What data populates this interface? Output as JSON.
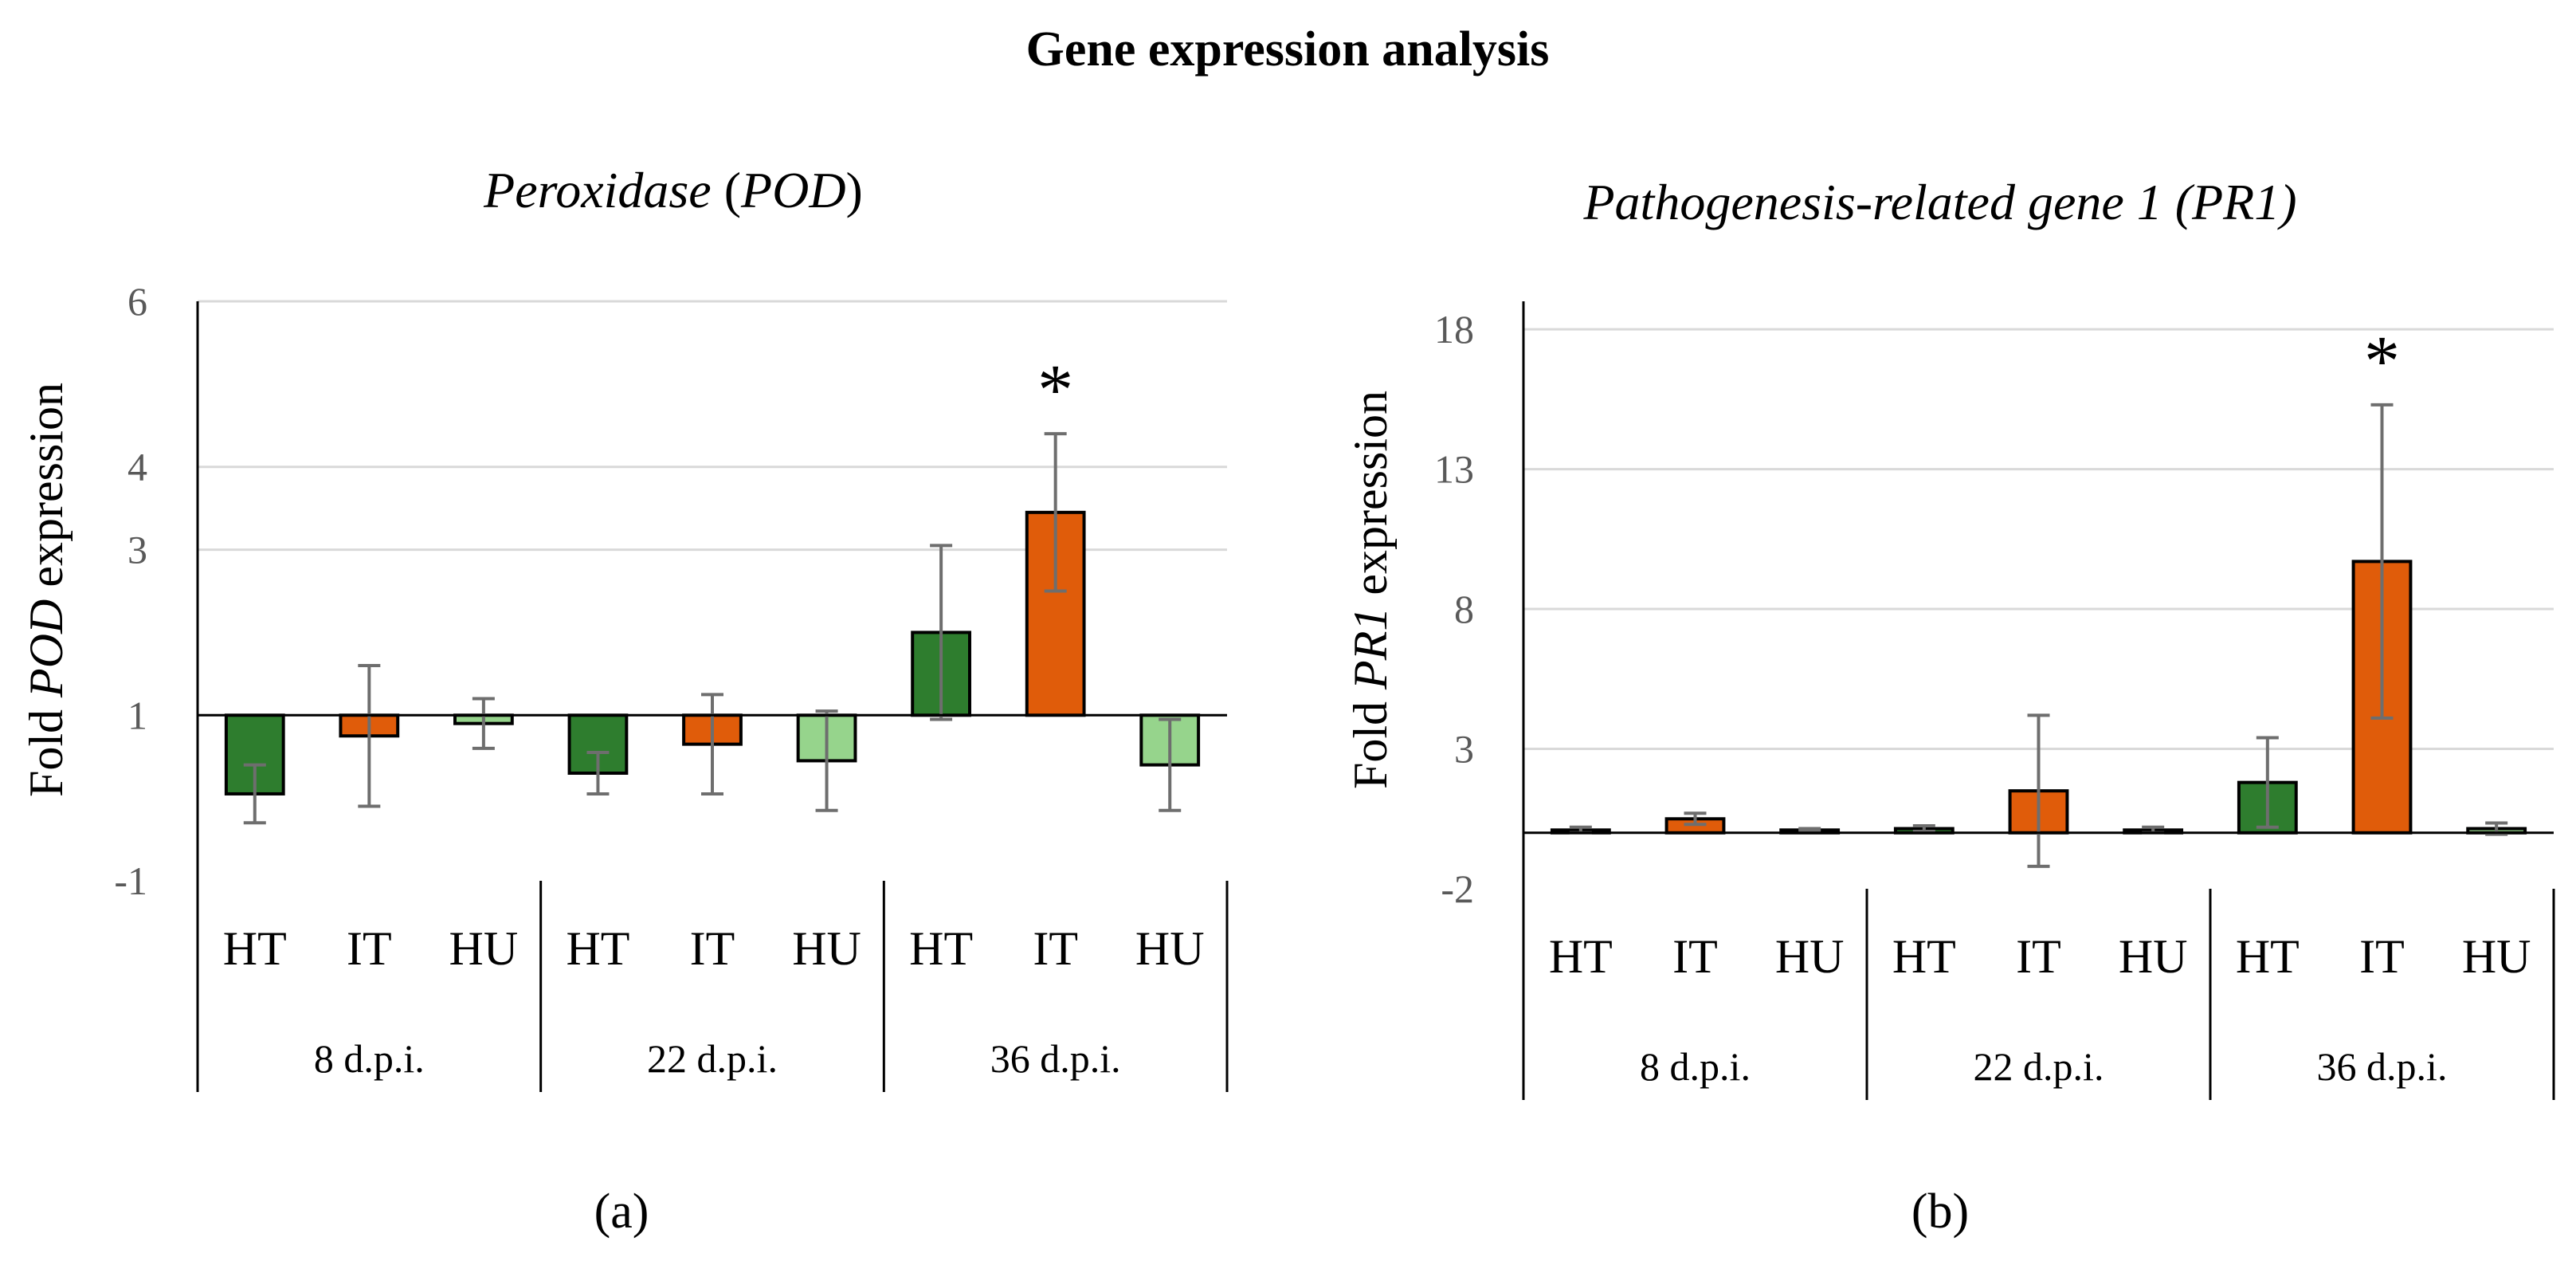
{
  "figure_title": "Gene expression analysis",
  "colors": {
    "HT": "#2e7d2e",
    "IT": "#e05c0a",
    "HU": "#96d48c",
    "grid": "#d9d9d9"
  },
  "chart_data": [
    {
      "type": "bar",
      "panel": "a",
      "panel_label": "(a)",
      "title_italic": "Peroxidase",
      "title_plain": " (",
      "title_italic2": "POD",
      "title_end": ")",
      "ylabel_pre": "Fold ",
      "ylabel_italic": "POD",
      "ylabel_post": " expression",
      "ylim": [
        -1,
        6
      ],
      "yticks": [
        -1,
        1,
        3,
        4,
        6
      ],
      "groups": [
        "8 d.p.i.",
        "22 d.p.i.",
        "36 d.p.i."
      ],
      "categories": [
        "HT",
        "IT",
        "HU",
        "HT",
        "IT",
        "HU",
        "HT",
        "IT",
        "HU"
      ],
      "values": [
        0.05,
        0.75,
        0.9,
        0.3,
        0.65,
        0.45,
        2.0,
        3.45,
        0.4
      ],
      "errors": [
        0.35,
        0.85,
        0.3,
        0.25,
        0.6,
        0.6,
        1.05,
        0.95,
        0.55
      ],
      "significant": [
        false,
        false,
        false,
        false,
        false,
        false,
        false,
        true,
        false
      ],
      "significance_marker": "*",
      "grid": true
    },
    {
      "type": "bar",
      "panel": "b",
      "panel_label": "(b)",
      "title_italic": "Pathogenesis-related gene 1 (PR1)",
      "title_plain": "",
      "title_italic2": "",
      "title_end": "",
      "ylabel_pre": "Fold ",
      "ylabel_italic": "PR1",
      "ylabel_post": " expression",
      "ylim": [
        -2,
        19
      ],
      "yticks": [
        -2,
        3,
        8,
        13,
        18
      ],
      "groups": [
        "8 d.p.i.",
        "22 d.p.i.",
        "36 d.p.i."
      ],
      "categories": [
        "HT",
        "IT",
        "HU",
        "HT",
        "IT",
        "HU",
        "HT",
        "IT",
        "HU"
      ],
      "values": [
        0.1,
        0.5,
        0.1,
        0.15,
        1.5,
        0.1,
        1.8,
        9.7,
        0.15
      ],
      "errors": [
        0.1,
        0.2,
        0.05,
        0.1,
        2.7,
        0.1,
        1.6,
        5.6,
        0.2
      ],
      "significant": [
        false,
        false,
        false,
        false,
        false,
        false,
        false,
        true,
        false
      ],
      "significance_marker": "*",
      "grid": true
    }
  ]
}
